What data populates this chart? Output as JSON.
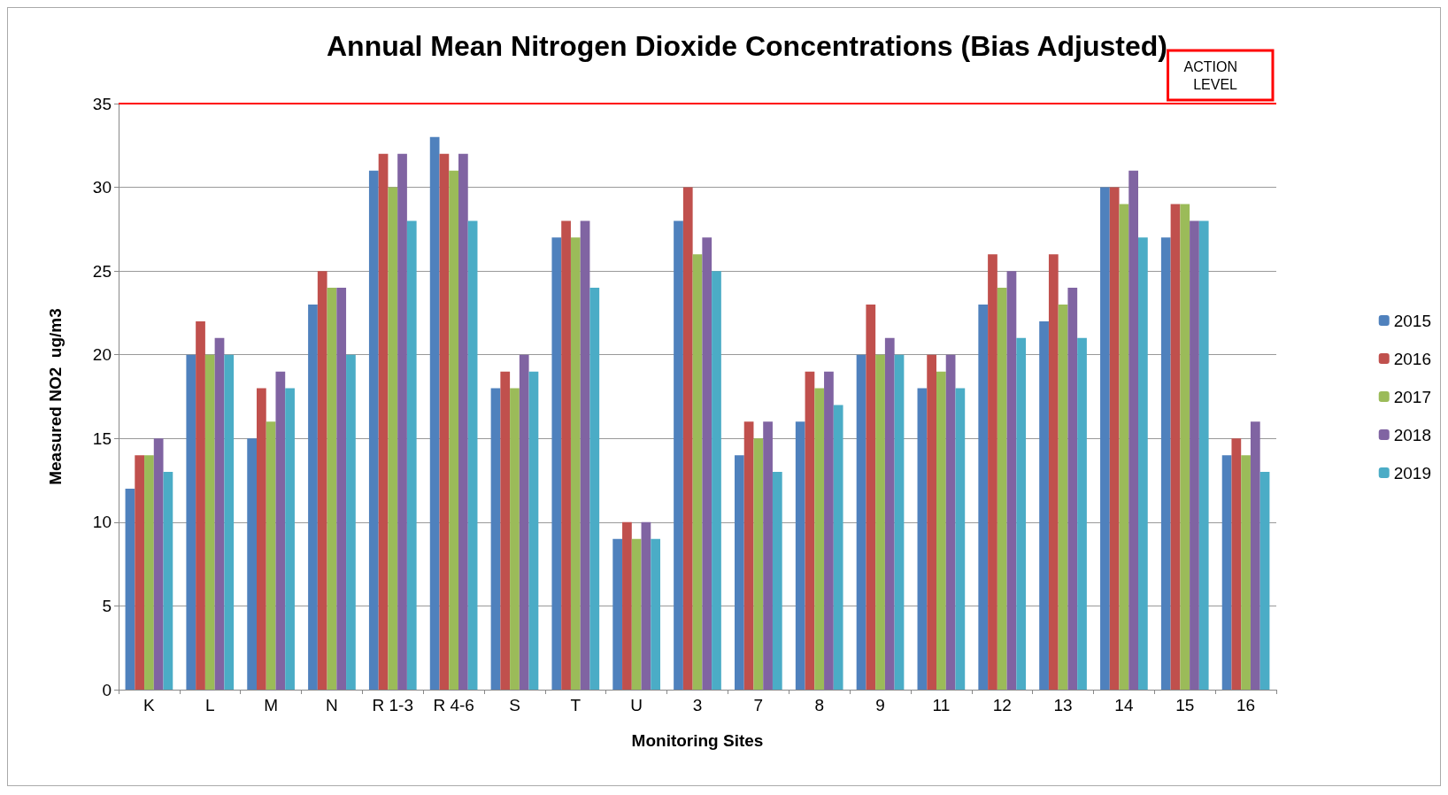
{
  "chart_data": {
    "type": "bar",
    "title": "Annual Mean Nitrogen Dioxide Concentrations (Bias Adjusted)",
    "xlabel": "Monitoring Sites",
    "ylabel": "Measured NO2  ug/m3",
    "categories": [
      "K",
      "L",
      "M",
      "N",
      "R 1-3",
      "R 4-6",
      "S",
      "T",
      "U",
      "3",
      "7",
      "8",
      "9",
      "11",
      "12",
      "13",
      "14",
      "15",
      "16"
    ],
    "series": [
      {
        "name": "2015",
        "color": "#4f81bd",
        "values": [
          12,
          20,
          15,
          23,
          31,
          33,
          18,
          27,
          9,
          28,
          14,
          16,
          20,
          18,
          23,
          22,
          30,
          27,
          14
        ]
      },
      {
        "name": "2016",
        "color": "#c0504d",
        "values": [
          14,
          22,
          18,
          25,
          32,
          32,
          19,
          28,
          10,
          30,
          16,
          19,
          23,
          20,
          26,
          26,
          30,
          29,
          15
        ]
      },
      {
        "name": "2017",
        "color": "#9bbb59",
        "values": [
          14,
          20,
          16,
          24,
          30,
          31,
          18,
          27,
          9,
          26,
          15,
          18,
          20,
          19,
          24,
          23,
          29,
          29,
          14
        ]
      },
      {
        "name": "2018",
        "color": "#8064a2",
        "values": [
          15,
          21,
          19,
          24,
          32,
          32,
          20,
          28,
          10,
          27,
          16,
          19,
          21,
          20,
          25,
          24,
          31,
          28,
          16
        ]
      },
      {
        "name": "2019",
        "color": "#4bacc6",
        "values": [
          13,
          20,
          18,
          20,
          28,
          28,
          19,
          24,
          9,
          25,
          13,
          17,
          20,
          18,
          21,
          21,
          27,
          28,
          13
        ]
      }
    ],
    "ylim": [
      0,
      35
    ],
    "yticks": [
      0,
      5,
      10,
      15,
      20,
      25,
      30,
      35
    ],
    "grid": "y",
    "legend": "right",
    "ref_lines": [
      {
        "axis": "y",
        "value": 35,
        "label": "ACTION\nLEVEL",
        "color": "#ff0000",
        "line_style": "solid"
      }
    ]
  }
}
